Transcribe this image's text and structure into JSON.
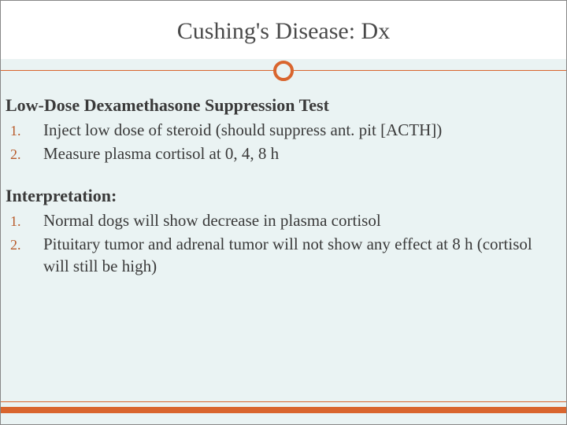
{
  "colors": {
    "accent": "#d9652e",
    "background": "#eaf3f3",
    "title_bg": "#ffffff",
    "text": "#3a3a3a",
    "number": "#b85a2a"
  },
  "title": "Cushing's Disease: Dx",
  "sections": [
    {
      "heading": "Low-Dose Dexamethasone Suppression Test",
      "items": [
        {
          "n": "1.",
          "text": "Inject low dose of steroid (should suppress ant. pit [ACTH])"
        },
        {
          "n": "2.",
          "text": "Measure plasma cortisol at 0, 4, 8 h"
        }
      ]
    },
    {
      "heading": "Interpretation:",
      "items": [
        {
          "n": "1.",
          "text": "Normal dogs will show decrease in plasma cortisol"
        },
        {
          "n": "2.",
          "text": "Pituitary tumor and adrenal tumor will not show any effect at 8 h (cortisol will still be high)"
        }
      ]
    }
  ]
}
